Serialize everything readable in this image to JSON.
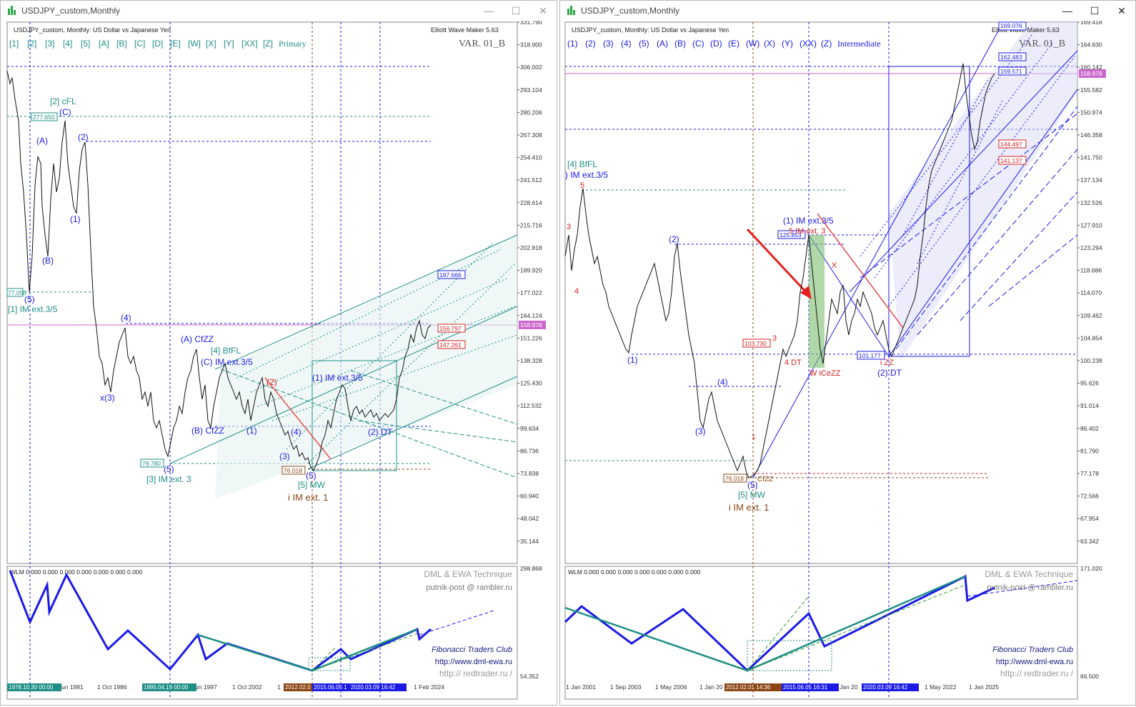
{
  "windows": [
    {
      "title": "USDJPY_custom,Monthly",
      "chart_caption": "USDJPY_custom, Monthly:  US Dollar vs Japanese Yen",
      "indicator": "Elliott Wave Maker 5.63",
      "wave_buttons": [
        "[1]",
        "[2]",
        "[3]",
        "[4]",
        "[5]",
        "[A]",
        "[B]",
        "[C]",
        "[D]",
        "[E]",
        "[W]",
        "[X]",
        "[Y]",
        "[XX]",
        "[Z]"
      ],
      "degree": "Primary",
      "variant": "VAR. 01_B",
      "price_axis": [
        "331.790",
        "318.900",
        "306.002",
        "293.104",
        "280.206",
        "267.308",
        "254.410",
        "241.512",
        "228.614",
        "215.716",
        "202.818",
        "189.920",
        "177.022",
        "164.124",
        "151.226",
        "138.328",
        "125.430",
        "112.532",
        "99.634",
        "86.736",
        "73.838",
        "60.940",
        "48.042",
        "35.144"
      ],
      "current_price": "158.978",
      "price_boxes": {
        "p187": "187.666",
        "p156": "156.797",
        "p147": "147.261",
        "p277": "277.650",
        "p79": "79.780",
        "p76": "76.018",
        "p77": "77.050"
      },
      "wave_labels": {
        "w2cfl": "[2] cFL",
        "wC": "(C)",
        "wA": "(A)",
        "w2": "(2)",
        "w1": "(1)",
        "wB": "(B)",
        "w5a": "(5)",
        "w1im": "[1] IM ext.3/5",
        "w4a": "(4)",
        "x3": "x(3)",
        "acfzz": "(A) CfZZ",
        "bfl": "[4] BfFL",
        "cfzz": "(C) IM ext.3/5",
        "bcfzz": "(B) CfZZ",
        "w1b": "(1)",
        "w2red": "(2)",
        "w3": "(3)",
        "w4b": "(4)",
        "w5b": "(5)",
        "w5mw": "[5] MW",
        "iim": "i IM ext. 1",
        "w3im": "[3] IM ext. 3",
        "w5c": "(5)",
        "im35": "(1) IM ext.3/5",
        "dt": "(2) DT"
      },
      "sub_header": "WLM 0.000 0.000 0.000 0.000 0.000 0.000 0.000",
      "sub_axis": [
        "298.868",
        "54.352"
      ],
      "watermark": {
        "tech": "DML & EWA Technique",
        "email": "putnik-post @ rambler.ru",
        "club": "Fibonacci     Traders     Club",
        "site1": "http://www.dml-ewa.ru",
        "site2": "http:// redtrader.ru /"
      },
      "time_axis": [
        "un 1981",
        "1 Oct 1986",
        "un 1997",
        "1 Oct 2002",
        "1",
        "1 Feb 2024"
      ],
      "time_tags": [
        "1978.10.30 00:00",
        "1995.04.19 00:00",
        "2012.02.0",
        "2015.06.05 1",
        "2020.03.09 16:42"
      ]
    },
    {
      "title": "USDJPY_custom,Monthly",
      "chart_caption": "USDJPY_custom, Monthly:  US Dollar vs Japanese Yen",
      "indicator": "Elliott Wave Maker 5.63",
      "wave_buttons": [
        "(1)",
        "(2)",
        "(3)",
        "(4)",
        "(5)",
        "(A)",
        "(B)",
        "(C)",
        "(D)",
        "(E)",
        "(W)",
        "(X)",
        "(Y)",
        "(XX)",
        "(Z)"
      ],
      "degree": "Intermediate",
      "variant": "VAR. 01_B",
      "price_axis": [
        "169.418",
        "164.630",
        "160.142",
        "155.582",
        "150.974",
        "146.358",
        "141.750",
        "137.134",
        "132.526",
        "127.910",
        "123.294",
        "118.686",
        "114.070",
        "109.462",
        "104.854",
        "100.238",
        "95.626",
        "91.014",
        "86.402",
        "81.790",
        "77.178",
        "72.566",
        "67.954",
        "63.342"
      ],
      "current_price": "158.978",
      "price_boxes": {
        "p169": "169.076",
        "p162": "162.483",
        "p159": "159.571",
        "p144": "144.497",
        "p141": "141.137",
        "p125": "125.853",
        "p103": "103.730",
        "p101": "101.177",
        "p76": "76.018"
      },
      "wave_labels": {
        "bffl": "[4] BfFL",
        "im": ") IM ext.3/5",
        "r5": "5",
        "r3": "3",
        "r4": "4",
        "w2": "(2)",
        "w1": "(1)",
        "w4": "(4)",
        "w3": "(3)",
        "w5": "(5)",
        "w5mw": "[5] MW",
        "iim": "i IM ext. 1",
        "cfzz": "CfZZ",
        "im35": "(1) IM ext.3/5",
        "im3": "5 IM ext. 3",
        "red3": "3",
        "dt4": "4 DT",
        "wicezz": "W iCeZZ",
        "x": "X",
        "izz": "i ZZ",
        "dt2": "(2) DT",
        "r1": "1"
      },
      "sub_header": "WLM 0.000 0.000 0.000 0.000 0.000 0.000 0.000",
      "sub_axis": [
        "171.020",
        "66.500"
      ],
      "watermark": {
        "tech": "DML & EWA Technique",
        "email": "putnik-post @ rambler.ru",
        "club": "Fibonacci     Traders     Club",
        "site1": "http://www.dml-ewa.ru",
        "site2": "http:// redtrader.ru /"
      },
      "time_axis": [
        "1 Jan 2001",
        "1 Sep 2003",
        "1 May 2006",
        "1 Jan 20",
        "1 Jan 20",
        "1 May 2022",
        "1 Jan 2025"
      ],
      "time_tags": [
        "2012.02.01 14:36",
        "2015.06.05 16:31",
        "2020.03.09 16:42"
      ]
    }
  ],
  "window_controls": [
    "minimize-icon",
    "maximize-icon",
    "close-icon"
  ],
  "colors": {
    "blue": "#1a1ae6",
    "teal": "#1f8f86",
    "red": "#d62020",
    "magenta": "#cc66cc",
    "brown": "#8b4513",
    "axis": "#555555"
  }
}
